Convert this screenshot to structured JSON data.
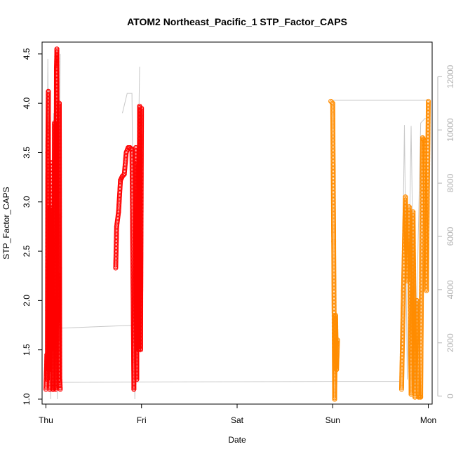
{
  "chart_data": {
    "type": "scatter",
    "title": "ATOM2 Northeast_Pacific_1 STP_Factor_CAPS",
    "xlabel": "Date",
    "ylabel": "STP_Factor_CAPS",
    "x_ticks": [
      "Thu",
      "Fri",
      "Sat",
      "Sun",
      "Mon"
    ],
    "y_ticks": [
      "1.0",
      "1.5",
      "2.0",
      "2.5",
      "3.0",
      "3.5",
      "4.0",
      "4.5"
    ],
    "y2_ticks": [
      "0",
      "2000",
      "4000",
      "6000",
      "8000",
      "10000",
      "12000"
    ],
    "xlim": [
      -0.04,
      4.04
    ],
    "ylim": [
      0.95,
      4.62
    ],
    "y2lim": [
      -300,
      13300
    ],
    "colors": {
      "series_a": "#ff0000",
      "series_b": "#ff8c00",
      "secondary_line": "#c8c8c8"
    },
    "series": [
      {
        "color": "#ff0000",
        "x": [
          0.0,
          0.01,
          0.015,
          0.02,
          0.025,
          0.03,
          0.035,
          0.04,
          0.045,
          0.05,
          0.06,
          0.07,
          0.08,
          0.09,
          0.1,
          0.11,
          0.115,
          0.12,
          0.125,
          0.13,
          0.135,
          0.14,
          0.145,
          0.15
        ],
        "y": [
          1.1,
          1.45,
          1.2,
          3.5,
          4.12,
          1.3,
          2.4,
          1.1,
          2.95,
          1.5,
          3.4,
          1.1,
          1.1,
          3.8,
          1.1,
          4.35,
          4.55,
          2.0,
          1.8,
          2.26,
          1.2,
          4.0,
          1.2,
          1.1
        ]
      },
      {
        "color": "#ff0000",
        "x": [
          0.73,
          0.74,
          0.76,
          0.78,
          0.8,
          0.82,
          0.84,
          0.86,
          0.88,
          0.9,
          0.92,
          0.94,
          0.95,
          0.96,
          0.97,
          0.98,
          0.99,
          1.0
        ],
        "y": [
          2.33,
          2.75,
          2.9,
          3.22,
          3.26,
          3.28,
          3.5,
          3.55,
          3.55,
          3.53,
          1.1,
          3.55,
          1.2,
          3.4,
          1.5,
          3.97,
          1.5,
          3.95
        ]
      },
      {
        "color": "#ff8c00",
        "x": [
          2.98,
          3.0,
          3.01,
          3.02,
          3.03,
          3.04,
          3.05
        ],
        "y": [
          4.02,
          4.0,
          2.6,
          1.0,
          1.85,
          1.3,
          1.6
        ]
      },
      {
        "color": "#ff8c00",
        "x": [
          3.72,
          3.74,
          3.76,
          3.78,
          3.8,
          3.82,
          3.84,
          3.86,
          3.88,
          3.9,
          3.92,
          3.94,
          3.96,
          3.98,
          4.0
        ],
        "y": [
          1.1,
          2.1,
          3.05,
          2.2,
          2.95,
          1.05,
          2.9,
          1.02,
          2.0,
          1.02,
          1.02,
          3.65,
          3.62,
          2.1,
          4.02
        ]
      }
    ]
  }
}
